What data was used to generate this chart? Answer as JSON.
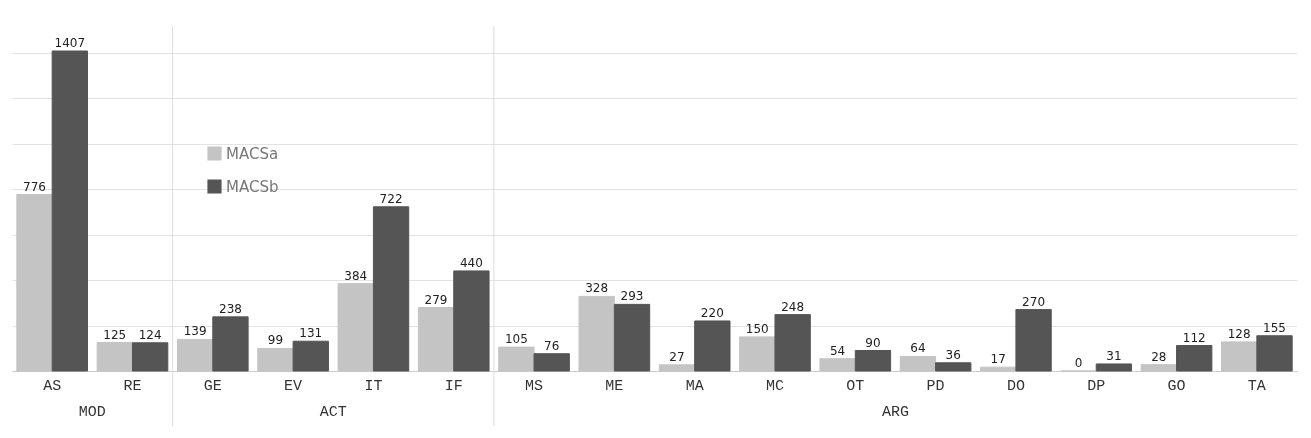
{
  "chart_data": {
    "type": "bar",
    "categories": [
      "AS",
      "RE",
      "GE",
      "EV",
      "IT",
      "IF",
      "MS",
      "ME",
      "MA",
      "MC",
      "OT",
      "PD",
      "DO",
      "DP",
      "GO",
      "TA"
    ],
    "series": [
      {
        "name": "MACSa",
        "color": "#c4c4c4",
        "values": [
          776,
          125,
          139,
          99,
          384,
          279,
          105,
          328,
          27,
          150,
          54,
          64,
          17,
          0,
          28,
          128
        ]
      },
      {
        "name": "MACSb",
        "color": "#555555",
        "values": [
          1407,
          124,
          238,
          131,
          722,
          440,
          76,
          293,
          220,
          248,
          90,
          36,
          270,
          31,
          112,
          155
        ]
      }
    ],
    "yticks": [
      {
        "value": 0,
        "label": null
      },
      {
        "value": 200,
        "label": null
      },
      {
        "value": 400,
        "label": null
      },
      {
        "value": 600,
        "label": null
      },
      {
        "value": 800,
        "label": null
      },
      {
        "value": 1000,
        "label": null
      },
      {
        "value": 1200,
        "label": null
      },
      {
        "value": 1400,
        "label": null
      }
    ],
    "tick_labels": "x",
    "grid": "y",
    "legend": "top left",
    "data_labels": true,
    "annotations": [
      "MOD",
      "ACT",
      "ARG"
    ]
  }
}
